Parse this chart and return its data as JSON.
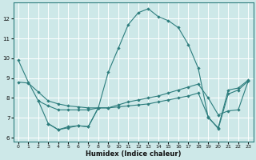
{
  "xlabel": "Humidex (Indice chaleur)",
  "xlim": [
    -0.5,
    23.5
  ],
  "ylim": [
    5.8,
    12.8
  ],
  "yticks": [
    6,
    7,
    8,
    9,
    10,
    11,
    12
  ],
  "xticks": [
    0,
    1,
    2,
    3,
    4,
    5,
    6,
    7,
    8,
    9,
    10,
    11,
    12,
    13,
    14,
    15,
    16,
    17,
    18,
    19,
    20,
    21,
    22,
    23
  ],
  "background_color": "#cde8e8",
  "grid_color": "#ffffff",
  "line_color": "#2d7d7d",
  "line1_x": [
    0,
    1,
    2,
    3,
    4,
    5,
    6,
    7,
    8,
    9,
    10,
    11,
    12,
    13,
    14,
    15,
    16,
    17,
    18,
    19,
    20,
    21,
    22,
    23
  ],
  "line1_y": [
    9.9,
    8.8,
    7.85,
    6.7,
    6.4,
    6.5,
    6.6,
    6.55,
    7.5,
    9.3,
    10.5,
    11.7,
    12.3,
    12.5,
    12.1,
    11.9,
    11.55,
    10.7,
    9.5,
    7.0,
    6.5,
    8.4,
    8.5,
    8.9
  ],
  "line2_x": [
    0,
    1,
    2,
    3,
    4,
    5,
    6,
    7,
    8,
    9,
    10,
    11,
    12,
    13,
    14,
    15,
    16,
    17,
    18,
    19,
    20,
    21,
    22,
    23
  ],
  "line2_y": [
    8.8,
    8.75,
    8.3,
    7.85,
    7.7,
    7.6,
    7.55,
    7.5,
    7.5,
    7.5,
    7.55,
    7.6,
    7.65,
    7.7,
    7.8,
    7.9,
    8.0,
    8.1,
    8.25,
    7.05,
    6.45,
    8.2,
    8.4,
    8.85
  ],
  "line3_x": [
    2,
    3,
    4,
    5,
    6,
    7,
    8,
    9,
    10,
    11,
    12,
    13,
    14,
    15,
    16,
    17,
    18,
    19,
    20,
    21,
    22,
    23
  ],
  "line3_y": [
    7.85,
    7.6,
    7.4,
    7.4,
    7.4,
    7.4,
    7.5,
    7.5,
    7.65,
    7.8,
    7.9,
    8.0,
    8.1,
    8.25,
    8.4,
    8.55,
    8.7,
    8.0,
    7.15,
    7.35,
    7.4,
    8.85
  ],
  "line4_x": [
    3,
    4,
    5,
    6,
    7,
    8
  ],
  "line4_y": [
    6.7,
    6.4,
    6.55,
    6.6,
    6.55,
    7.5
  ],
  "marker": "D",
  "markersize": 2.2,
  "linewidth": 0.8
}
